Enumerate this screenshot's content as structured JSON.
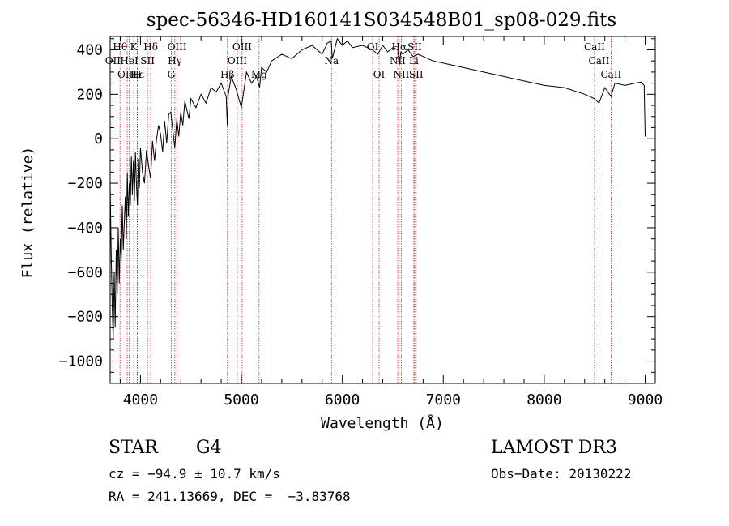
{
  "chart_data": {
    "type": "line",
    "title": "spec-56346-HD160141S034548B01_sp08-029.fits",
    "xlabel": "Wavelength (Å)",
    "ylabel": "Flux (relative)",
    "xlim": [
      3700,
      9100
    ],
    "ylim": [
      -1100,
      460
    ],
    "x_ticks": [
      4000,
      5000,
      6000,
      7000,
      8000,
      9000
    ],
    "y_ticks": [
      -1000,
      -800,
      -600,
      -400,
      -200,
      0,
      200,
      400
    ],
    "grid": false,
    "series": [
      {
        "name": "flux",
        "x": [
          3700,
          3710,
          3720,
          3730,
          3740,
          3750,
          3760,
          3770,
          3780,
          3790,
          3800,
          3810,
          3820,
          3830,
          3840,
          3850,
          3860,
          3870,
          3880,
          3890,
          3900,
          3910,
          3920,
          3930,
          3940,
          3950,
          3960,
          3970,
          3980,
          3990,
          4000,
          4020,
          4040,
          4060,
          4080,
          4100,
          4120,
          4140,
          4160,
          4180,
          4200,
          4220,
          4240,
          4260,
          4280,
          4300,
          4320,
          4340,
          4360,
          4380,
          4400,
          4420,
          4440,
          4460,
          4480,
          4500,
          4550,
          4600,
          4650,
          4700,
          4750,
          4800,
          4850,
          4860,
          4870,
          4900,
          4950,
          5000,
          5050,
          5100,
          5150,
          5180,
          5200,
          5250,
          5300,
          5400,
          5500,
          5600,
          5700,
          5800,
          5850,
          5890,
          5900,
          5950,
          6000,
          6050,
          6100,
          6200,
          6300,
          6350,
          6400,
          6450,
          6500,
          6550,
          6563,
          6580,
          6600,
          6650,
          6700,
          6750,
          6800,
          6900,
          7000,
          7200,
          7400,
          7600,
          7800,
          8000,
          8200,
          8400,
          8498,
          8542,
          8600,
          8662,
          8700,
          8800,
          8900,
          8960,
          8990,
          9000
        ],
        "y": [
          -200,
          -500,
          -750,
          -900,
          -600,
          -850,
          -500,
          -700,
          -400,
          -650,
          -450,
          -550,
          -300,
          -500,
          -380,
          -260,
          -450,
          -150,
          -350,
          -200,
          -300,
          -80,
          -250,
          -100,
          -280,
          -60,
          -200,
          -300,
          -90,
          -220,
          -40,
          -150,
          -200,
          -50,
          -120,
          -180,
          -10,
          -100,
          0,
          60,
          20,
          -60,
          80,
          -20,
          110,
          120,
          40,
          -40,
          90,
          10,
          120,
          60,
          170,
          130,
          90,
          180,
          140,
          200,
          160,
          230,
          210,
          250,
          190,
          60,
          200,
          280,
          220,
          140,
          300,
          250,
          280,
          230,
          320,
          300,
          350,
          380,
          360,
          400,
          420,
          380,
          430,
          440,
          360,
          450,
          420,
          440,
          410,
          420,
          400,
          380,
          420,
          390,
          410,
          400,
          330,
          390,
          380,
          400,
          370,
          380,
          370,
          350,
          340,
          320,
          300,
          280,
          260,
          240,
          230,
          200,
          180,
          160,
          230,
          190,
          250,
          240,
          250,
          255,
          240,
          10
        ],
        "color": "#000000"
      }
    ],
    "lines": [
      {
        "label": "Hθ",
        "x": 3798,
        "row": 1
      },
      {
        "label": "OII",
        "x": 3727,
        "row": 2
      },
      {
        "label": "OIII",
        "x": 3869,
        "row": 3
      },
      {
        "label": "K",
        "x": 3934,
        "row": 1
      },
      {
        "label": "HeI",
        "x": 3889,
        "row": 2
      },
      {
        "label": "Hε",
        "x": 3970,
        "row": 3
      },
      {
        "label": "Hδ",
        "x": 4102,
        "row": 1
      },
      {
        "label": "SII",
        "x": 4070,
        "row": 2
      },
      {
        "label": "H",
        "x": 3968,
        "row": 3
      },
      {
        "label": "OIII",
        "x": 4363,
        "row": 1
      },
      {
        "label": "Hγ",
        "x": 4341,
        "row": 2
      },
      {
        "label": "G",
        "x": 4305,
        "row": 3
      },
      {
        "label": "OIII",
        "x": 5007,
        "row": 1
      },
      {
        "label": "OIII",
        "x": 4959,
        "row": 2
      },
      {
        "label": "Hβ",
        "x": 4861,
        "row": 3
      },
      {
        "label": "Mg",
        "x": 5175,
        "row": 3
      },
      {
        "label": "Na",
        "x": 5893,
        "row": 2
      },
      {
        "label": "OI",
        "x": 6300,
        "row": 1
      },
      {
        "label": "OI",
        "x": 6364,
        "row": 3
      },
      {
        "label": "Hα",
        "x": 6563,
        "row": 1
      },
      {
        "label": "NII",
        "x": 6548,
        "row": 2
      },
      {
        "label": "NII",
        "x": 6584,
        "row": 3
      },
      {
        "label": "SII",
        "x": 6717,
        "row": 1
      },
      {
        "label": "Li",
        "x": 6708,
        "row": 2
      },
      {
        "label": "SII",
        "x": 6731,
        "row": 3
      },
      {
        "label": "CaII",
        "x": 8498,
        "row": 1
      },
      {
        "label": "CaII",
        "x": 8542,
        "row": 2
      },
      {
        "label": "CaII",
        "x": 8662,
        "row": 3
      }
    ]
  },
  "info": {
    "object_class": "STAR",
    "subclass": "G4",
    "survey": "LAMOST DR3",
    "cz": "cz = −94.9 ± 10.7 km/s",
    "obs_date": "Obs−Date: 20130222",
    "radec": "RA = 241.13669, DEC =  −3.83768"
  }
}
